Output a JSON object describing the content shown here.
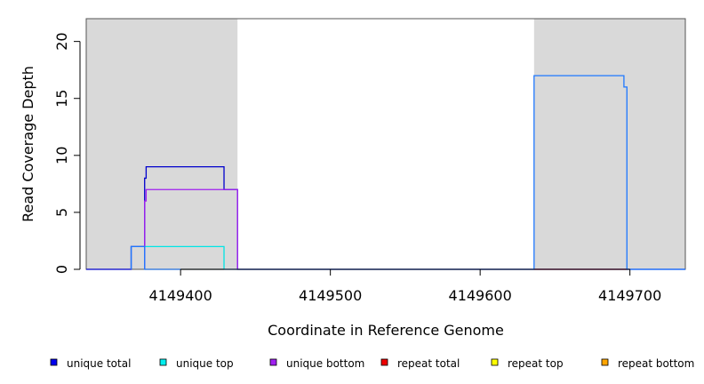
{
  "chart_data": {
    "type": "line",
    "xlabel": "Coordinate in Reference Genome",
    "ylabel": "Read Coverage Depth",
    "xlim": [
      4149337,
      4149737
    ],
    "ylim": [
      0,
      22
    ],
    "x_ticks": [
      4149400,
      4149500,
      4149600,
      4149700
    ],
    "x_tick_labels": [
      "4149400",
      "4149500",
      "4149600",
      "4149700"
    ],
    "y_ticks": [
      0,
      5,
      10,
      15,
      20
    ],
    "y_tick_labels": [
      "0",
      "5",
      "10",
      "15",
      "20"
    ],
    "shaded_regions": [
      [
        4149337,
        4149438
      ],
      [
        4149636,
        4149737
      ]
    ],
    "shade_color": "#d9d9d9",
    "grid": false,
    "legend_position": "bottom",
    "series": [
      {
        "name": "unique total",
        "color": "#0000cc",
        "x": [
          4149337,
          4149367,
          4149367,
          4149376,
          4149376,
          4149377,
          4149377,
          4149429,
          4149429,
          4149438,
          4149438,
          4149737
        ],
        "y": [
          0,
          0,
          2,
          2,
          8,
          8,
          9,
          9,
          7,
          7,
          0,
          0
        ]
      },
      {
        "name": "unique top",
        "color": "#00e5e5",
        "x": [
          4149376,
          4149376,
          4149429,
          4149429
        ],
        "y": [
          0,
          2,
          2,
          0
        ]
      },
      {
        "name": "unique bottom",
        "color": "#a020f0",
        "x": [
          4149376,
          4149376,
          4149377,
          4149377,
          4149438,
          4149438
        ],
        "y": [
          0,
          6,
          6,
          7,
          7,
          0
        ]
      },
      {
        "name": "repeat total",
        "color": "#ee0000",
        "x": [
          4149636,
          4149698
        ],
        "y": [
          0,
          0
        ]
      },
      {
        "name": "repeat top",
        "color": "#eeee00",
        "x": [],
        "y": []
      },
      {
        "name": "repeat bottom",
        "color": "#ffa500",
        "x": [
          4149376,
          4149429
        ],
        "y": [
          0,
          0
        ]
      },
      {
        "name": "",
        "color": "#1e78ff",
        "x": [
          4149367,
          4149367,
          4149376,
          4149376,
          4149636,
          4149636,
          4149696,
          4149696,
          4149698,
          4149698,
          4149737
        ],
        "y": [
          0,
          2,
          2,
          0,
          0,
          17,
          17,
          16,
          16,
          0,
          0
        ]
      }
    ],
    "legend": [
      {
        "label": "unique total",
        "color": "#0000ee"
      },
      {
        "label": "unique top",
        "color": "#00eeee"
      },
      {
        "label": "unique bottom",
        "color": "#a020f0"
      },
      {
        "label": "repeat total",
        "color": "#ee0000"
      },
      {
        "label": "repeat top",
        "color": "#ffff00"
      },
      {
        "label": "repeat bottom",
        "color": "#ffa500"
      }
    ]
  }
}
